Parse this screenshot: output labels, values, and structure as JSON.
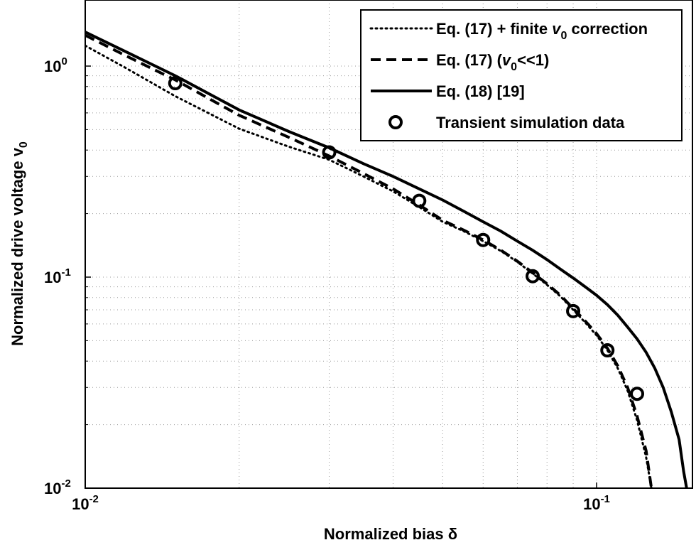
{
  "chart_data": {
    "type": "line",
    "scale": {
      "x": "log",
      "y": "log"
    },
    "xlim": [
      0.01,
      0.15
    ],
    "ylim": [
      0.01,
      1.5
    ],
    "grid": true,
    "grid_style": "dotted",
    "legend_position": "top-right",
    "title": "",
    "xlabel": "Normalized bias δ",
    "ylabel": "Normalized drive voltage v",
    "ylabel_sub": "0",
    "x_ticks": [
      {
        "value": 0.01,
        "base": "10",
        "exp": "-2"
      },
      {
        "value": 0.1,
        "base": "10",
        "exp": "-1"
      }
    ],
    "y_ticks": [
      {
        "value": 0.01,
        "base": "10",
        "exp": "-2"
      },
      {
        "value": 0.1,
        "base": "10",
        "exp": "-1"
      },
      {
        "value": 1,
        "base": "10",
        "exp": "0"
      }
    ],
    "series": [
      {
        "name": "Eq. (17) + finite v0 correction",
        "legend_parts": {
          "before": "Eq. (17) + finite ",
          "var": "v",
          "sub": "0",
          "after": " correction"
        },
        "style": "dotted",
        "x": [
          0.01,
          0.012,
          0.015,
          0.02,
          0.025,
          0.03,
          0.035,
          0.04,
          0.045,
          0.05,
          0.055,
          0.06,
          0.065,
          0.07,
          0.075,
          0.08,
          0.085,
          0.09,
          0.095,
          0.1,
          0.105,
          0.11,
          0.115,
          0.12,
          0.125,
          0.128
        ],
        "y": [
          1.25,
          0.98,
          0.72,
          0.505,
          0.415,
          0.36,
          0.3,
          0.255,
          0.215,
          0.183,
          0.165,
          0.148,
          0.133,
          0.118,
          0.104,
          0.092,
          0.081,
          0.07,
          0.061,
          0.053,
          0.045,
          0.037,
          0.029,
          0.021,
          0.014,
          0.01
        ]
      },
      {
        "name": "Eq. (17) (v0<<1)",
        "legend_parts": {
          "before": "Eq. (17) (",
          "var": "v",
          "sub": "0",
          "after": "<<1)"
        },
        "style": "dashed",
        "x": [
          0.01,
          0.012,
          0.015,
          0.02,
          0.025,
          0.03,
          0.035,
          0.04,
          0.045,
          0.05,
          0.055,
          0.06,
          0.065,
          0.07,
          0.075,
          0.08,
          0.085,
          0.09,
          0.095,
          0.1,
          0.105,
          0.11,
          0.115,
          0.12,
          0.125,
          0.128
        ],
        "y": [
          1.4,
          1.12,
          0.86,
          0.585,
          0.46,
          0.375,
          0.31,
          0.262,
          0.22,
          0.186,
          0.167,
          0.15,
          0.134,
          0.119,
          0.105,
          0.093,
          0.082,
          0.071,
          0.062,
          0.054,
          0.046,
          0.038,
          0.03,
          0.022,
          0.015,
          0.01
        ]
      },
      {
        "name": "Eq. (18) [19]",
        "legend_parts": {
          "before": "Eq. (18) [19]",
          "var": "",
          "sub": "",
          "after": ""
        },
        "style": "solid",
        "x": [
          0.01,
          0.012,
          0.015,
          0.02,
          0.025,
          0.03,
          0.035,
          0.04,
          0.045,
          0.05,
          0.055,
          0.06,
          0.065,
          0.07,
          0.075,
          0.08,
          0.085,
          0.09,
          0.095,
          0.1,
          0.105,
          0.11,
          0.115,
          0.12,
          0.125,
          0.13,
          0.135,
          0.14,
          0.145,
          0.148,
          0.15
        ],
        "y": [
          1.45,
          1.17,
          0.9,
          0.62,
          0.49,
          0.41,
          0.345,
          0.3,
          0.262,
          0.232,
          0.205,
          0.183,
          0.165,
          0.148,
          0.134,
          0.121,
          0.109,
          0.099,
          0.09,
          0.082,
          0.074,
          0.066,
          0.058,
          0.051,
          0.044,
          0.037,
          0.03,
          0.023,
          0.017,
          0.012,
          0.01
        ]
      },
      {
        "name": "Transient simulation data",
        "legend_parts": {
          "before": "Transient simulation data",
          "var": "",
          "sub": "",
          "after": ""
        },
        "style": "markers",
        "marker": "circle",
        "x": [
          0.015,
          0.03,
          0.045,
          0.06,
          0.075,
          0.09,
          0.105,
          0.12
        ],
        "y": [
          0.83,
          0.39,
          0.23,
          0.15,
          0.101,
          0.069,
          0.045,
          0.028
        ]
      }
    ]
  }
}
